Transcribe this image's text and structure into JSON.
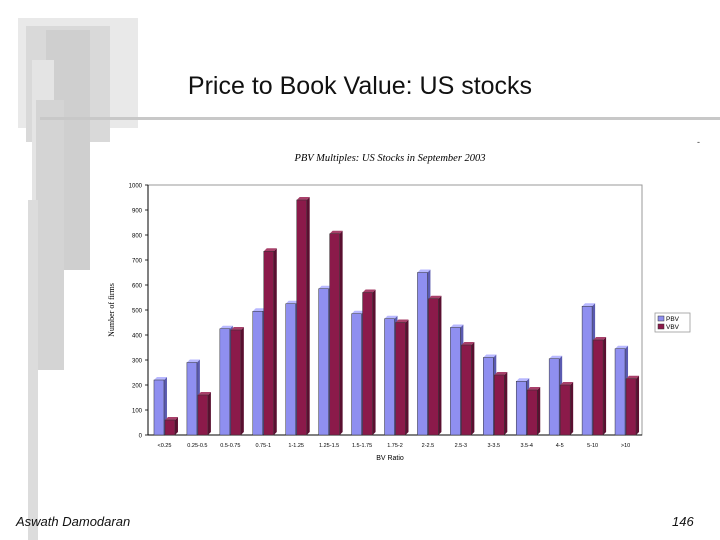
{
  "slide": {
    "title": "Price to Book Value: US stocks",
    "footer_author": "Aswath Damodaran",
    "page_number": "146",
    "corner_mark": "-"
  },
  "chart_data": {
    "type": "bar",
    "title": "PBV Multiples: US Stocks in September 2003",
    "xlabel": "BV Ratio",
    "ylabel": "Number of firms",
    "ylim": [
      0,
      1000
    ],
    "yticks": [
      "0",
      "100",
      "200",
      "300",
      "400",
      "500",
      "600",
      "700",
      "800",
      "900",
      "1000"
    ],
    "categories": [
      "<0.25",
      "0.25-0.5",
      "0.5-0.75",
      "0.75-1",
      "1-1.25",
      "1.25-1.5",
      "1.5-1.75",
      "1.75-2",
      "2-2.5",
      "2.5-3",
      "3-3.5",
      "3.5-4",
      "4-5",
      "5-10",
      ">10"
    ],
    "series": [
      {
        "name": "PBV",
        "color": "#8f8ff0",
        "values": [
          220,
          290,
          425,
          495,
          525,
          585,
          485,
          465,
          650,
          430,
          310,
          215,
          305,
          515,
          345
        ]
      },
      {
        "name": "VBV",
        "color": "#8b1a4a",
        "values": [
          60,
          160,
          420,
          735,
          940,
          805,
          570,
          450,
          545,
          360,
          240,
          180,
          200,
          380,
          225
        ]
      }
    ],
    "grid": false,
    "legend_position": "right"
  }
}
